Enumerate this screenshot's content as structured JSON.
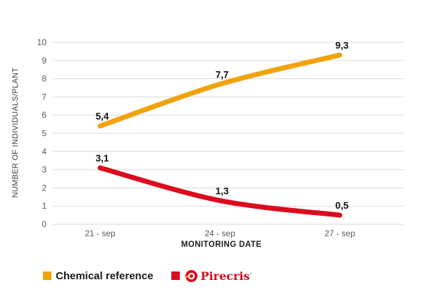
{
  "chart_data": {
    "type": "line",
    "categories": [
      "21 - sep",
      "24 - sep",
      "27 - sep"
    ],
    "series": [
      {
        "name": "Chemical reference",
        "values": [
          5.4,
          7.7,
          9.3
        ],
        "data_labels": [
          "5,4",
          "7,7",
          "9,3"
        ],
        "color": "#F2A20D"
      },
      {
        "name": "Pirecris",
        "values": [
          3.1,
          1.3,
          0.5
        ],
        "data_labels": [
          "3,1",
          "1,3",
          "0,5"
        ],
        "color": "#DC0A1E"
      }
    ],
    "xlabel": "MONITORING DATE",
    "ylabel": "NUMBER OF INDIVIDUALS/PLANT",
    "ylim": [
      0,
      10
    ],
    "yticks": [
      0,
      1,
      2,
      3,
      4,
      5,
      6,
      7,
      8,
      9,
      10
    ],
    "grid": true,
    "gridline_color": "#D9D9D9",
    "tick_label_color": "#595959",
    "data_label_color": "#111111",
    "legend_position": "bottom"
  },
  "legend": {
    "items": [
      {
        "label": "Chemical reference",
        "swatch_color": "#F2A20D"
      },
      {
        "label": "Pirecris",
        "trademark_mark": "·",
        "swatch_color": "#DC0A1E",
        "brand_color": "#CE0E1F",
        "logo_icon": "pirecris-target-logo",
        "logo_main_color": "#DC0A1E",
        "logo_accent_color": "#F2A20D"
      }
    ]
  }
}
